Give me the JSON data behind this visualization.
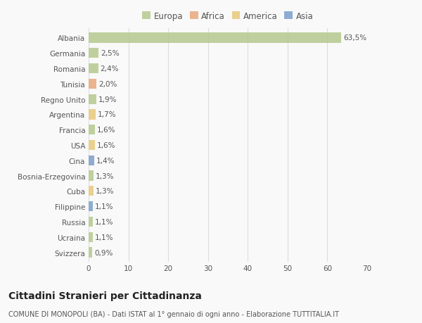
{
  "countries": [
    "Albania",
    "Germania",
    "Romania",
    "Tunisia",
    "Regno Unito",
    "Argentina",
    "Francia",
    "USA",
    "Cina",
    "Bosnia-Erzegovina",
    "Cuba",
    "Filippine",
    "Russia",
    "Ucraina",
    "Svizzera"
  ],
  "values": [
    63.5,
    2.5,
    2.4,
    2.0,
    1.9,
    1.7,
    1.6,
    1.6,
    1.4,
    1.3,
    1.3,
    1.1,
    1.1,
    1.1,
    0.9
  ],
  "labels": [
    "63,5%",
    "2,5%",
    "2,4%",
    "2,0%",
    "1,9%",
    "1,7%",
    "1,6%",
    "1,6%",
    "1,4%",
    "1,3%",
    "1,3%",
    "1,1%",
    "1,1%",
    "1,1%",
    "0,9%"
  ],
  "colors": [
    "#b5c98e",
    "#b5c98e",
    "#b5c98e",
    "#e8a87c",
    "#b5c98e",
    "#e8c97c",
    "#b5c98e",
    "#e8c97c",
    "#7a9fc9",
    "#b5c98e",
    "#e8c97c",
    "#7a9fc9",
    "#b5c98e",
    "#b5c98e",
    "#b5c98e"
  ],
  "legend_labels": [
    "Europa",
    "Africa",
    "America",
    "Asia"
  ],
  "legend_colors": [
    "#b5c98e",
    "#e8a87c",
    "#e8c97c",
    "#7a9fc9"
  ],
  "title": "Cittadini Stranieri per Cittadinanza",
  "subtitle": "COMUNE DI MONOPOLI (BA) - Dati ISTAT al 1° gennaio di ogni anno - Elaborazione TUTTITALIA.IT",
  "xlim": [
    0,
    70
  ],
  "xticks": [
    0,
    10,
    20,
    30,
    40,
    50,
    60,
    70
  ],
  "background_color": "#f9f9f9",
  "grid_color": "#dddddd",
  "bar_height": 0.65,
  "title_fontsize": 10,
  "subtitle_fontsize": 7,
  "label_fontsize": 7.5,
  "tick_fontsize": 7.5,
  "legend_fontsize": 8.5
}
